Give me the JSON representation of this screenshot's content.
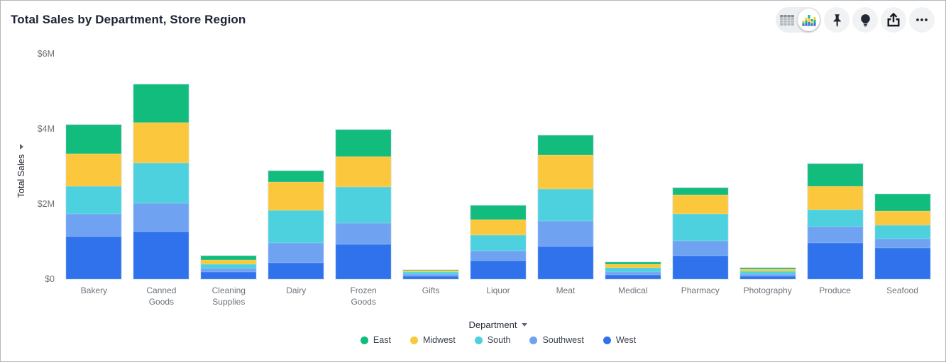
{
  "header": {
    "title": "Total Sales by Department, Store Region"
  },
  "toolbar": {
    "view_toggle": {
      "options": [
        "table-view",
        "chart-view"
      ],
      "selected": "chart-view"
    },
    "buttons": [
      "pin",
      "lightbulb",
      "share",
      "more-options"
    ]
  },
  "chart_data": {
    "type": "bar",
    "stacked": true,
    "title": "Total Sales by Department, Store Region",
    "xlabel": "Department",
    "ylabel": "Total Sales",
    "units": "$M",
    "ylim": [
      0,
      6
    ],
    "grid": false,
    "legend_position": "bottom",
    "y_ticks": [
      {
        "label": "$0",
        "value": 0
      },
      {
        "label": "$2M",
        "value": 2
      },
      {
        "label": "$4M",
        "value": 4
      },
      {
        "label": "$6M",
        "value": 6
      }
    ],
    "categories": [
      "Bakery",
      "Canned Goods",
      "Cleaning Supplies",
      "Dairy",
      "Frozen Goods",
      "Gifts",
      "Liquor",
      "Meat",
      "Medical",
      "Pharmacy",
      "Photography",
      "Produce",
      "Seafood"
    ],
    "series": [
      {
        "name": "East",
        "color": "#12bc7d",
        "values": [
          0.78,
          1.01,
          0.11,
          0.3,
          0.72,
          0.02,
          0.38,
          0.53,
          0.06,
          0.19,
          0.04,
          0.6,
          0.46
        ]
      },
      {
        "name": "Midwest",
        "color": "#fbc83d",
        "values": [
          0.86,
          1.07,
          0.11,
          0.76,
          0.81,
          0.04,
          0.42,
          0.91,
          0.09,
          0.51,
          0.06,
          0.62,
          0.38
        ]
      },
      {
        "name": "South",
        "color": "#4dd1de",
        "values": [
          0.74,
          1.07,
          0.11,
          0.86,
          0.97,
          0.05,
          0.41,
          0.84,
          0.11,
          0.72,
          0.08,
          0.46,
          0.35
        ]
      },
      {
        "name": "Southwest",
        "color": "#6fa3f2",
        "values": [
          0.61,
          0.76,
          0.1,
          0.53,
          0.57,
          0.05,
          0.27,
          0.68,
          0.08,
          0.39,
          0.06,
          0.43,
          0.25
        ]
      },
      {
        "name": "West",
        "color": "#2f72eb",
        "values": [
          1.14,
          1.26,
          0.18,
          0.43,
          0.92,
          0.08,
          0.49,
          0.86,
          0.11,
          0.63,
          0.08,
          0.97,
          0.83
        ]
      }
    ]
  }
}
